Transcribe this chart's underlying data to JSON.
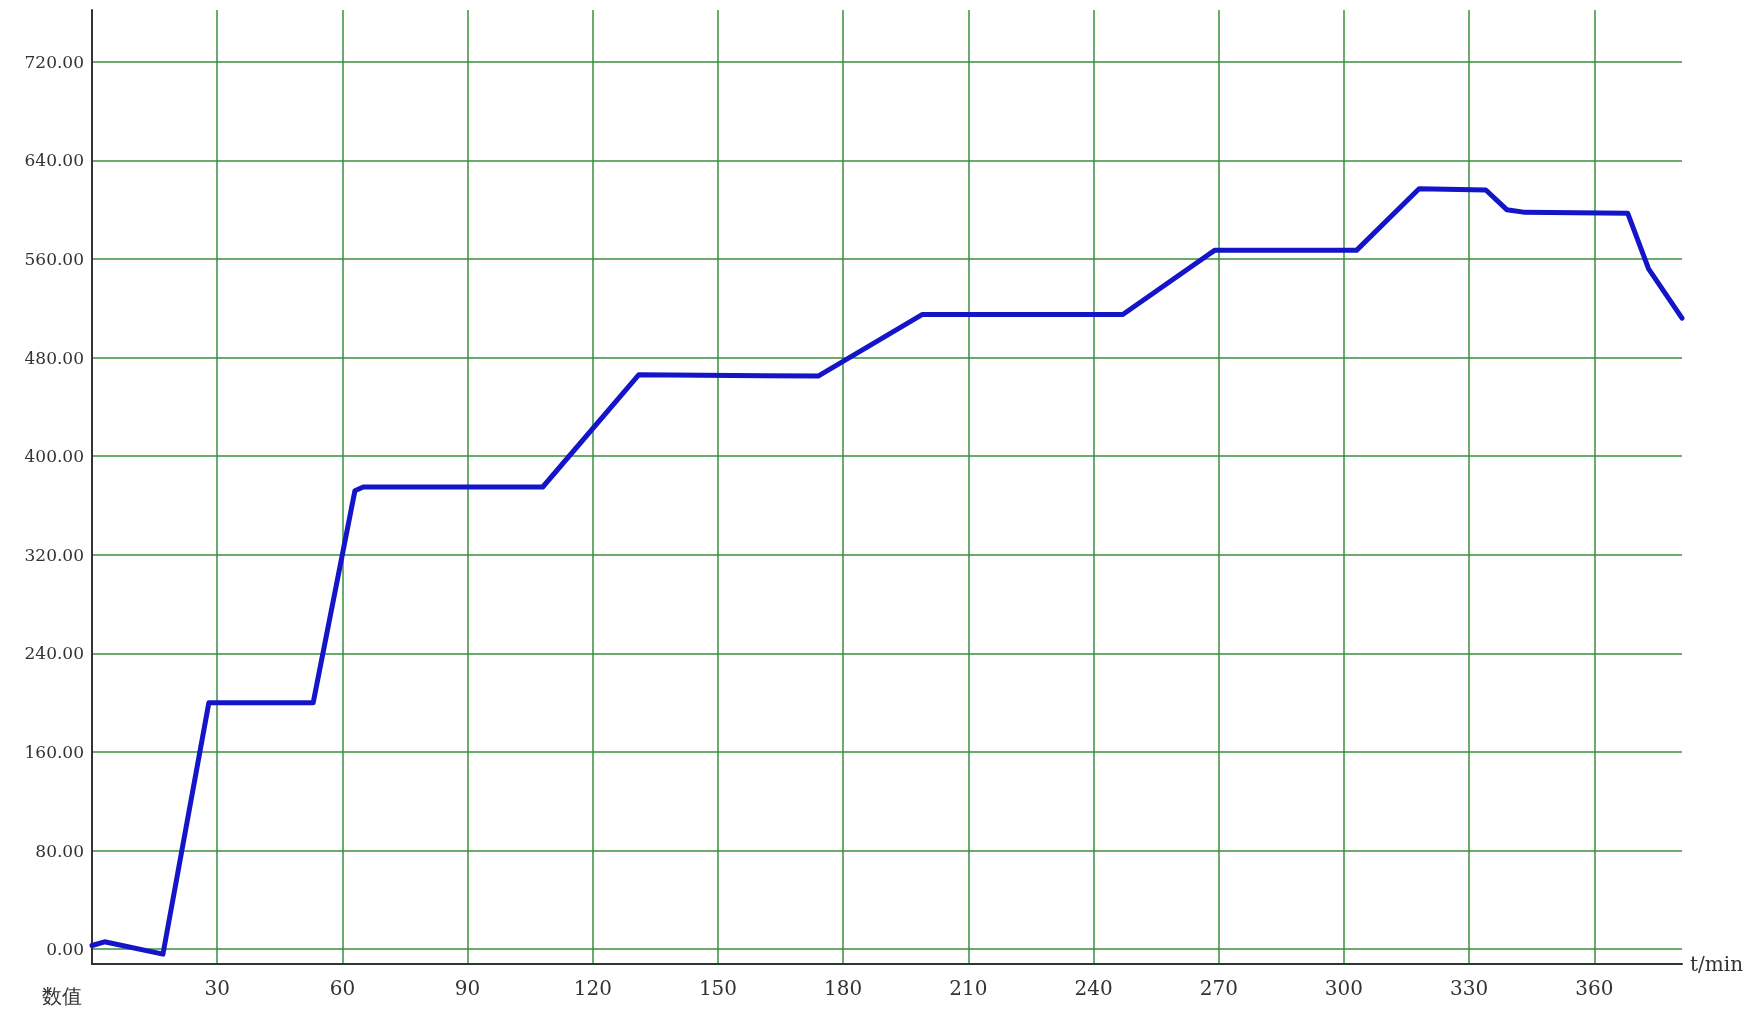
{
  "chart_data": {
    "type": "line",
    "xlabel": "t/min",
    "ylabel": "数值",
    "xlim": [
      0,
      381
    ],
    "ylim": [
      -12,
      762
    ],
    "xticks": [
      30,
      60,
      90,
      120,
      150,
      180,
      210,
      240,
      270,
      300,
      330,
      360
    ],
    "yticks": [
      {
        "value": 0,
        "label": "0.00"
      },
      {
        "value": 80,
        "label": "80.00"
      },
      {
        "value": 160,
        "label": "160.00"
      },
      {
        "value": 240,
        "label": "240.00"
      },
      {
        "value": 320,
        "label": "320.00"
      },
      {
        "value": 400,
        "label": "400.00"
      },
      {
        "value": 480,
        "label": "480.00"
      },
      {
        "value": 560,
        "label": "560.00"
      },
      {
        "value": 640,
        "label": "640.00"
      },
      {
        "value": 720,
        "label": "720.00"
      }
    ],
    "grid": true,
    "marker": "none",
    "line_style": "solid",
    "series": [
      {
        "color": "#1414c8",
        "x": [
          0,
          3,
          17,
          28,
          53,
          63,
          65,
          108,
          131,
          174,
          199,
          247,
          269,
          303,
          318,
          334,
          339,
          343,
          368,
          373,
          381
        ],
        "values": [
          3,
          6,
          -4,
          200,
          200,
          372,
          375,
          375,
          466,
          465,
          515,
          515,
          567,
          567,
          617,
          616,
          600,
          598,
          597,
          552,
          512
        ]
      }
    ]
  }
}
